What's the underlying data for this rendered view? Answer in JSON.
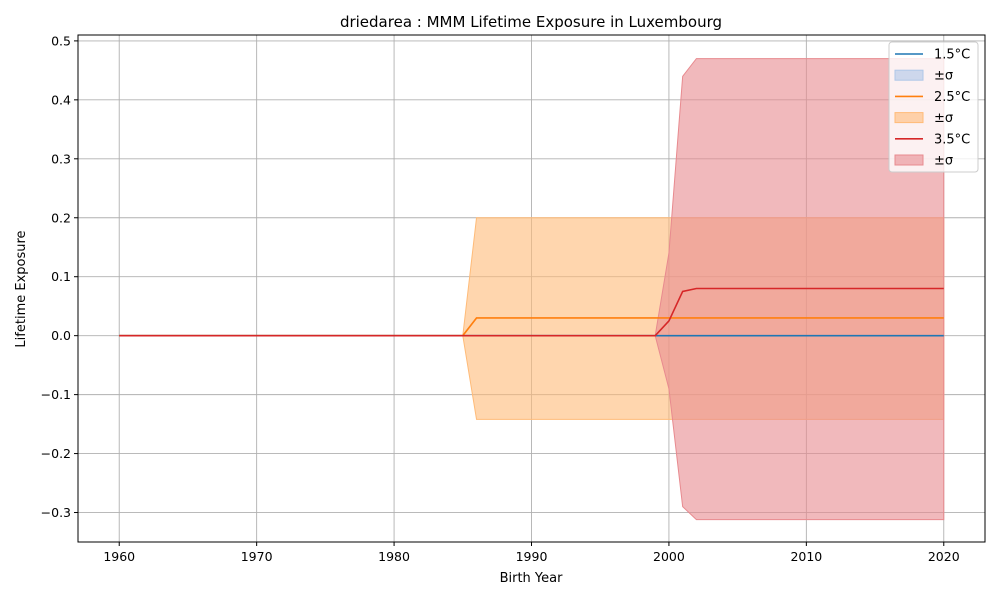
{
  "chart_data": {
    "type": "line",
    "title": "driedarea : MMM Lifetime Exposure in Luxembourg",
    "xlabel": "Birth Year",
    "ylabel": "Lifetime Exposure",
    "xlim": [
      1957,
      2023
    ],
    "ylim": [
      -0.35,
      0.51
    ],
    "xticks": [
      1960,
      1970,
      1980,
      1990,
      2000,
      2010,
      2020
    ],
    "yticks": [
      -0.3,
      -0.2,
      -0.1,
      0.0,
      0.1,
      0.2,
      0.3,
      0.4,
      0.5
    ],
    "ytick_labels": [
      "−0.3",
      "−0.2",
      "−0.1",
      "0.0",
      "0.1",
      "0.2",
      "0.3",
      "0.4",
      "0.5"
    ],
    "xtick_labels": [
      "1960",
      "1970",
      "1980",
      "1990",
      "2000",
      "2010",
      "2020"
    ],
    "grid": true,
    "legend_position": "top-right",
    "series": [
      {
        "name": "1.5°C",
        "band_label": "±σ",
        "color": "#1f77b4",
        "band_color": "#aec7e8",
        "x": [
          1960,
          2020
        ],
        "y": [
          0.0,
          0.0
        ],
        "band_lower": [
          0.0,
          0.0
        ],
        "band_upper": [
          0.0,
          0.0
        ]
      },
      {
        "name": "2.5°C",
        "band_label": "±σ",
        "color": "#ff7f0e",
        "band_color": "#ffbb78",
        "x": [
          1960,
          1985,
          1986,
          2020
        ],
        "y": [
          0.0,
          0.0,
          0.03,
          0.03
        ],
        "band_lower": [
          0.0,
          0.0,
          -0.142,
          -0.142
        ],
        "band_upper": [
          0.0,
          0.0,
          0.2,
          0.2
        ]
      },
      {
        "name": "3.5°C",
        "band_label": "±σ",
        "color": "#d62728",
        "band_color": "#e88a8f",
        "x": [
          1960,
          1999,
          2000,
          2001,
          2002,
          2020
        ],
        "y": [
          0.0,
          0.0,
          0.025,
          0.075,
          0.08,
          0.08
        ],
        "band_lower": [
          0.0,
          0.0,
          -0.09,
          -0.29,
          -0.312,
          -0.312
        ],
        "band_upper": [
          0.0,
          0.0,
          0.14,
          0.44,
          0.47,
          0.47
        ]
      }
    ]
  }
}
